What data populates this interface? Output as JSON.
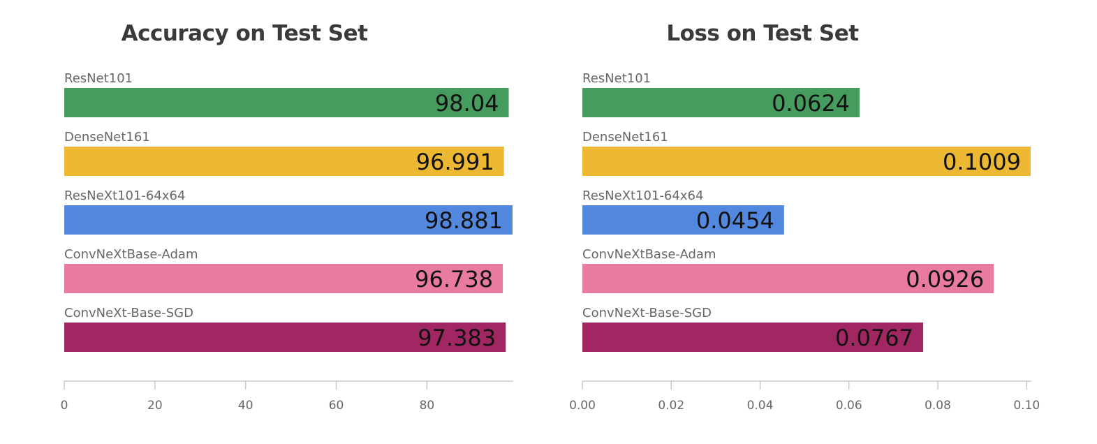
{
  "chart_data": [
    {
      "type": "bar",
      "orientation": "horizontal",
      "title": "Accuracy on Test Set",
      "categories": [
        "ResNet101",
        "DenseNet161",
        "ResNeXt101-64x64",
        "ConvNeXtBase-Adam",
        "ConvNeXt-Base-SGD"
      ],
      "values": [
        98.04,
        96.991,
        98.881,
        96.738,
        97.383
      ],
      "value_labels": [
        "98.04",
        "96.991",
        "98.881",
        "96.738",
        "97.383"
      ],
      "colors": [
        "#469b5f",
        "#ecb733",
        "#5288de",
        "#e97b9e",
        "#a12762"
      ],
      "xlim": [
        0,
        98.881
      ],
      "xticks": [
        0,
        20,
        40,
        60,
        80
      ],
      "xtick_labels": [
        "0",
        "20",
        "40",
        "60",
        "80"
      ],
      "xlabel": "",
      "ylabel": "",
      "grid": false
    },
    {
      "type": "bar",
      "orientation": "horizontal",
      "title": "Loss on Test Set",
      "categories": [
        "ResNet101",
        "DenseNet161",
        "ResNeXt101-64x64",
        "ConvNeXtBase-Adam",
        "ConvNeXt-Base-SGD"
      ],
      "values": [
        0.0624,
        0.1009,
        0.0454,
        0.0926,
        0.0767
      ],
      "value_labels": [
        "0.0624",
        "0.1009",
        "0.0454",
        "0.0926",
        "0.0767"
      ],
      "colors": [
        "#469b5f",
        "#ecb733",
        "#5288de",
        "#e97b9e",
        "#a12762"
      ],
      "xlim": [
        0,
        0.1009
      ],
      "xticks": [
        0,
        0.02,
        0.04,
        0.06,
        0.08,
        0.1
      ],
      "xtick_labels": [
        "0.00",
        "0.02",
        "0.04",
        "0.06",
        "0.08",
        "0.10"
      ],
      "xlabel": "",
      "ylabel": "",
      "grid": false
    }
  ]
}
